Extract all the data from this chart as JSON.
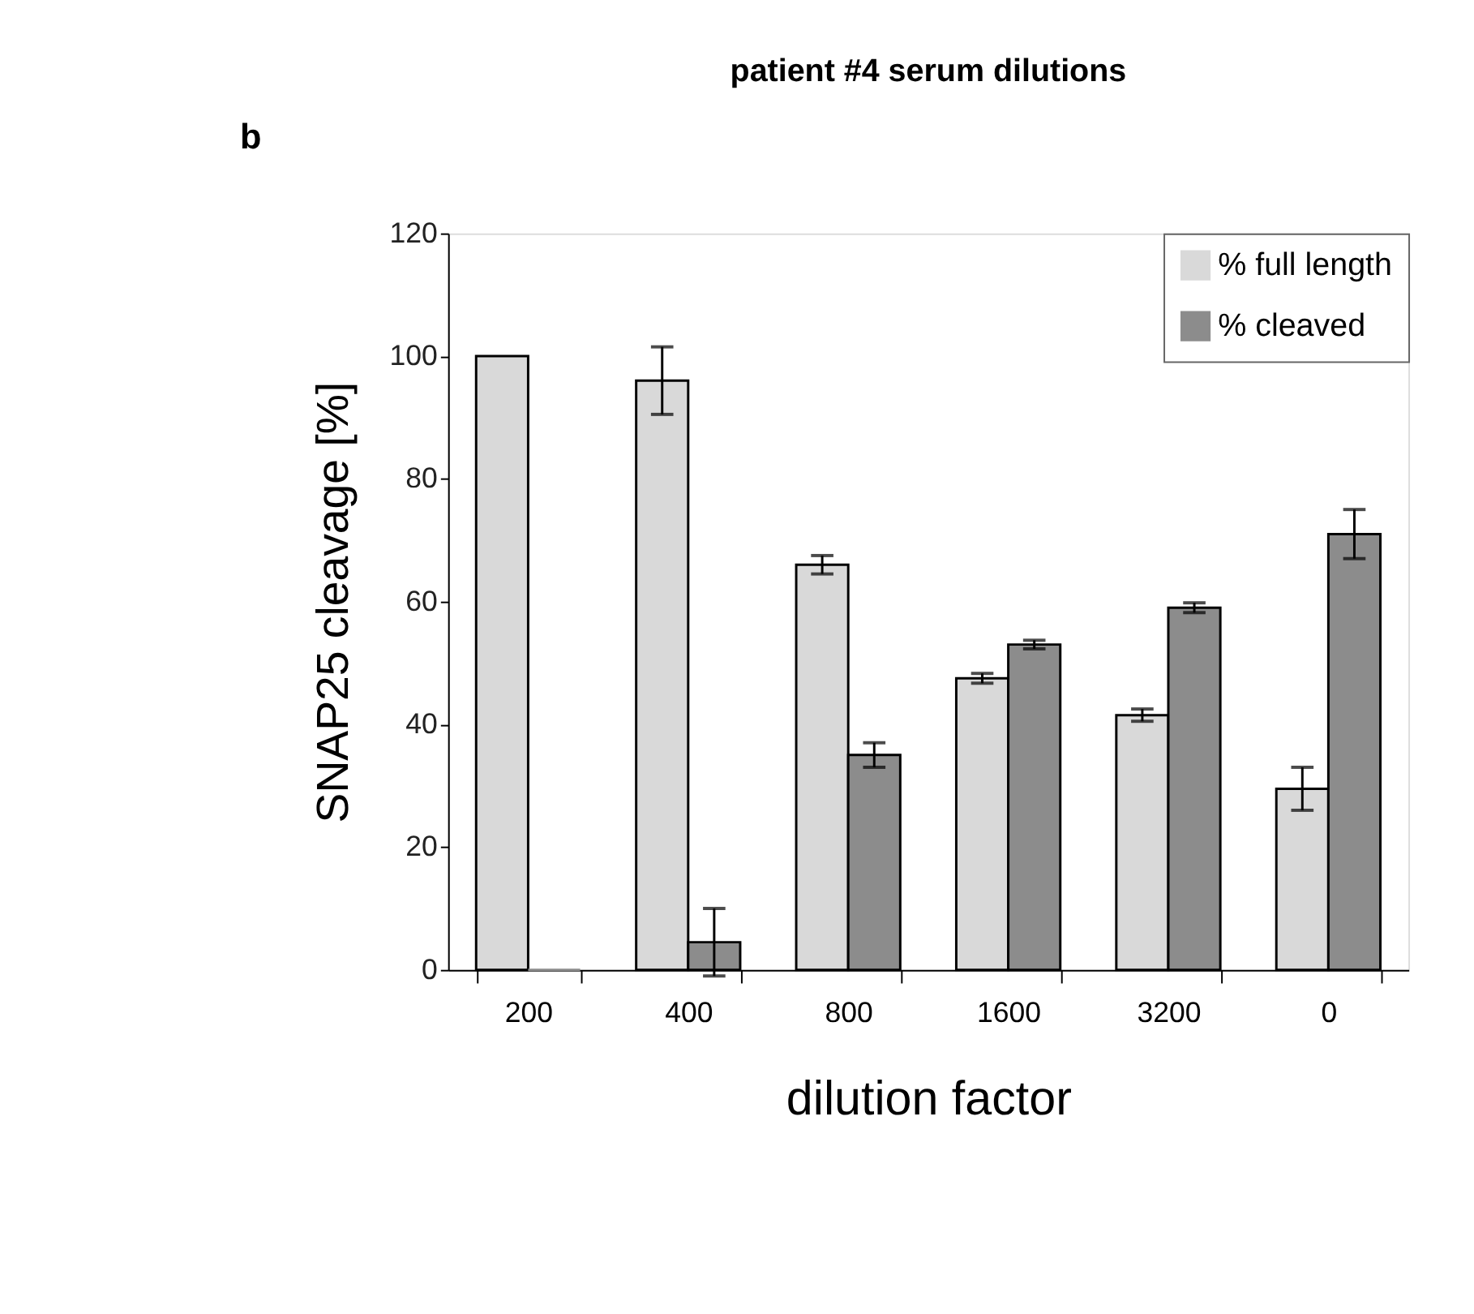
{
  "chart_data": {
    "type": "bar",
    "title": "patient #4 serum dilutions",
    "xlabel": "dilution factor",
    "ylabel": "SNAP25 cleavage [%]",
    "categories": [
      "200",
      "400",
      "800",
      "1600",
      "3200",
      "0"
    ],
    "series": [
      {
        "name": "% full length",
        "color": "#d9d9d9",
        "values": [
          100,
          96,
          66,
          47.5,
          41.5,
          29.5
        ],
        "errors": [
          null,
          5.5,
          1.5,
          0.8,
          1,
          3.5
        ]
      },
      {
        "name": "% cleaved",
        "color": "#8c8c8c",
        "values": [
          0,
          4.5,
          35,
          53,
          59,
          71
        ],
        "errors": [
          null,
          5.5,
          2,
          0.7,
          0.8,
          4
        ]
      }
    ],
    "ylim": [
      0,
      120
    ],
    "yticks": [
      0,
      20,
      40,
      60,
      80,
      100,
      120
    ],
    "grid": false,
    "legend": "top right",
    "annotations": [
      "b"
    ]
  }
}
